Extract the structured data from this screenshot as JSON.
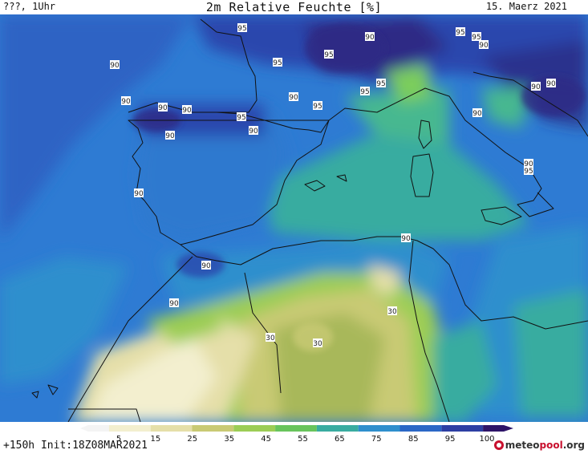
{
  "header": {
    "left": "???, 1Uhr",
    "title": "2m Relative Feuchte [%]",
    "date": "15. Maerz 2021"
  },
  "map": {
    "field": "relative humidity 2m",
    "region": "western Mediterranean",
    "contour_labels": [
      "90",
      "90",
      "95",
      "95",
      "95",
      "90",
      "95",
      "95",
      "95",
      "90",
      "90",
      "95",
      "90",
      "90",
      "90",
      "95",
      "95",
      "90",
      "90",
      "90",
      "90",
      "90",
      "95",
      "90",
      "90",
      "90",
      "90",
      "30",
      "30",
      "30"
    ]
  },
  "colorbar": {
    "ticks": [
      "5",
      "15",
      "25",
      "35",
      "45",
      "55",
      "65",
      "75",
      "85",
      "95",
      "100"
    ],
    "colors": [
      "#f4f4f4",
      "#f3efcf",
      "#e5dfa9",
      "#c9ca74",
      "#9ccd55",
      "#68c45c",
      "#39aca0",
      "#2f8fcd",
      "#2b67c6",
      "#2d3fa3",
      "#2e1468"
    ]
  },
  "footer": {
    "init": "+150h Init:18Z08MAR2021",
    "brand_prefix": "meteo",
    "brand_highlight": "pool",
    "brand_suffix": ".org"
  }
}
